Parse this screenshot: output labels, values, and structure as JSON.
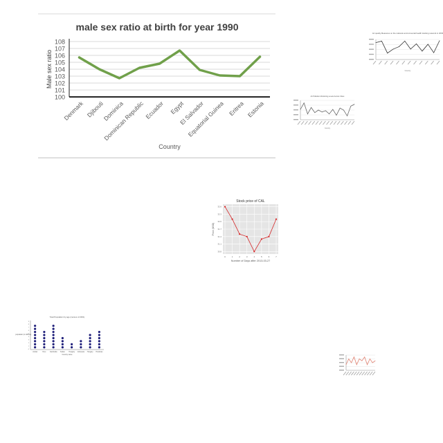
{
  "chart_data": [
    {
      "type": "line",
      "title": "male sex ratio at birth for year 1990",
      "xlabel": "Country",
      "ylabel": "Male sex ratio",
      "categories": [
        "Denmark",
        "Djibouti",
        "Dominica",
        "Dominican Republic",
        "Ecuador",
        "Egypt",
        "El Salvador",
        "Equatorial Guinea",
        "Eritrea",
        "Estonia"
      ],
      "values": [
        105.7,
        104.0,
        102.7,
        104.2,
        104.8,
        106.7,
        103.9,
        103.1,
        103.0,
        105.8
      ],
      "yticks": [
        "100",
        "101",
        "102",
        "103",
        "104",
        "105",
        "106",
        "107",
        "108"
      ],
      "ylim": [
        100,
        108
      ],
      "grid": "horizontal",
      "color": "#70a04a"
    },
    {
      "type": "line",
      "title": "Air quality Measures on the national environmental health tracking network in 2003",
      "xlabel": "Country",
      "ylabel": "",
      "values": [
        9.2,
        9.6,
        6.6,
        7.6,
        8.2,
        9.6,
        7.6,
        8.9,
        7.1,
        8.8,
        6.7,
        9.7
      ],
      "ylim": [
        5,
        10
      ],
      "color": "#333333"
    },
    {
      "type": "line",
      "title": "Air Pollution Monitoring Levels Across Cities",
      "xlabel": "Country",
      "ylabel": "",
      "values": [
        4.6,
        5.6,
        3.9,
        4.9,
        4.1,
        4.5,
        4.2,
        4.4,
        3.9,
        4.6,
        3.7,
        4.8,
        4.5,
        3.6,
        5.1,
        5.4
      ],
      "ylim": [
        3,
        6
      ],
      "color": "#666666"
    },
    {
      "type": "line",
      "title": "Stock price of CAL",
      "xlabel": "Number of Days after 2013-03-27",
      "ylabel": "Price (USD)",
      "x": [
        0,
        1,
        2,
        3,
        4,
        5,
        6,
        7
      ],
      "values": [
        32.6,
        32.1,
        31.5,
        31.4,
        30.8,
        31.3,
        31.4,
        32.1
      ],
      "ylim": [
        30.7,
        32.7
      ],
      "color": "#d62728"
    },
    {
      "type": "scatter",
      "title": "Total Population by age (census of 2001)",
      "xlabel": "Country name",
      "ylabel": "Total population (in millions)",
      "categories": [
        "Jordan",
        "Peru",
        "Cambodia",
        "Sudan",
        "Hungary",
        "Indonesia",
        "Hungary",
        "Honduras"
      ],
      "values": [
        8,
        6,
        8,
        4,
        2,
        3,
        5,
        6
      ],
      "color": "#1f1f7a"
    },
    {
      "type": "line",
      "title": "",
      "values": [
        3,
        6,
        4,
        7,
        3,
        6,
        5,
        7,
        3,
        6,
        4,
        5
      ],
      "ylim": [
        0,
        8
      ],
      "color": "#e08070"
    }
  ]
}
